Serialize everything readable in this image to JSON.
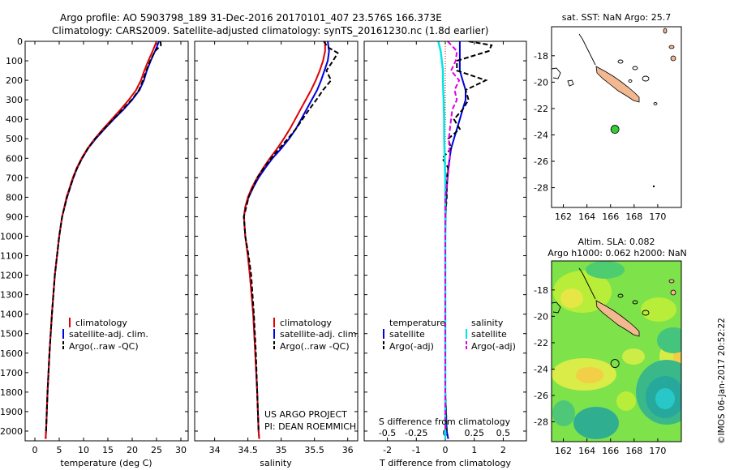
{
  "header": {
    "line1": "Argo profile: AO 5903798_189 31-Dec-2016 20170101_407 23.576S 166.373E",
    "line2": "Climatology: CARS2009. Satellite-adjusted climatology: synTS_20161230.nc (1.8d earlier)"
  },
  "colors": {
    "climatology": "#e00000",
    "satellite": "#0000e0",
    "argo": "#000000",
    "sat_salinity": "#00e5e5",
    "argo_salinity": "#e000e0",
    "marker": "#33cc33"
  },
  "depth_axis": {
    "min": 0,
    "max": 2050,
    "ticks": [
      "0",
      "100",
      "200",
      "300",
      "400",
      "500",
      "600",
      "700",
      "800",
      "900",
      "1000",
      "1100",
      "1200",
      "1300",
      "1400",
      "1500",
      "1600",
      "1700",
      "1800",
      "1900",
      "2000"
    ]
  },
  "chart_data": [
    {
      "type": "line",
      "id": "temperature",
      "xlabel": "temperature (deg C)",
      "xlim": [
        -2,
        31.5
      ],
      "xticks": [
        "0",
        "5",
        "10",
        "15",
        "20",
        "25",
        "30"
      ],
      "legend": [
        "climatology",
        "satellite-adj. clim.",
        "Argo(..raw -QC)"
      ],
      "series": [
        {
          "name": "climatology",
          "y": [
            0,
            50,
            100,
            150,
            200,
            250,
            300,
            350,
            400,
            450,
            500,
            550,
            600,
            650,
            700,
            800,
            900,
            1000,
            1200,
            1400,
            1600,
            1800,
            2000,
            2040
          ],
          "x": [
            25.0,
            24.2,
            23.3,
            22.5,
            21.8,
            20.8,
            19.3,
            17.6,
            15.8,
            14.0,
            12.3,
            10.8,
            9.6,
            8.6,
            7.8,
            6.5,
            5.6,
            5.0,
            4.1,
            3.5,
            3.0,
            2.6,
            2.3,
            2.2
          ]
        },
        {
          "name": "satellite-adj. clim.",
          "y": [
            0,
            50,
            100,
            150,
            200,
            250,
            300,
            350,
            400,
            450,
            500,
            550,
            600,
            650,
            700,
            800,
            900,
            1000,
            1200,
            1400,
            1600,
            1800,
            2000,
            2040
          ],
          "x": [
            25.5,
            24.7,
            23.8,
            23.0,
            22.4,
            21.5,
            20.0,
            18.2,
            16.2,
            14.3,
            12.5,
            10.9,
            9.7,
            8.7,
            7.9,
            6.6,
            5.6,
            5.0,
            4.1,
            3.5,
            3.0,
            2.6,
            2.3,
            2.2
          ]
        },
        {
          "name": "Argo(..raw -QC)",
          "y": [
            0,
            20,
            50,
            100,
            150,
            200,
            250,
            300,
            350,
            400,
            450,
            500,
            550,
            600,
            650,
            700,
            800,
            900,
            1000,
            1200,
            1400,
            1600,
            1800,
            2000
          ],
          "x": [
            25.8,
            25.9,
            24.7,
            23.7,
            22.9,
            22.2,
            21.4,
            19.9,
            18.0,
            16.1,
            14.2,
            12.4,
            10.9,
            9.7,
            8.7,
            7.9,
            6.6,
            5.6,
            5.0,
            4.1,
            3.5,
            3.0,
            2.6,
            2.3
          ]
        }
      ]
    },
    {
      "type": "line",
      "id": "salinity",
      "xlabel": "salinity",
      "xlim": [
        33.7,
        36.15
      ],
      "xticks": [
        "34",
        "34.5",
        "35",
        "35.5",
        "36"
      ],
      "legend": [
        "climatology",
        "satellite-adj. clim.",
        "Argo(..raw -QC)"
      ],
      "annotation": [
        "US ARGO PROJECT",
        "PI: DEAN ROEMMICH"
      ],
      "series": [
        {
          "name": "climatology",
          "y": [
            0,
            50,
            100,
            150,
            200,
            250,
            300,
            350,
            400,
            450,
            500,
            550,
            600,
            650,
            700,
            750,
            800,
            850,
            900,
            1000,
            1100,
            1200,
            1400,
            1600,
            1800,
            2000,
            2040
          ],
          "x": [
            35.66,
            35.66,
            35.63,
            35.58,
            35.52,
            35.45,
            35.37,
            35.29,
            35.21,
            35.13,
            35.04,
            34.94,
            34.83,
            34.73,
            34.64,
            34.56,
            34.5,
            34.46,
            34.44,
            34.46,
            34.5,
            34.53,
            34.58,
            34.61,
            34.64,
            34.66,
            34.67
          ]
        },
        {
          "name": "satellite-adj. clim.",
          "y": [
            0,
            50,
            100,
            150,
            200,
            250,
            300,
            350,
            400,
            450,
            500,
            550,
            600,
            650,
            700,
            750,
            800,
            850,
            900,
            1000,
            1100,
            1200,
            1400,
            1600,
            1800,
            2000,
            2040
          ],
          "x": [
            35.7,
            35.72,
            35.7,
            35.65,
            35.6,
            35.54,
            35.46,
            35.38,
            35.3,
            35.22,
            35.12,
            35.0,
            34.87,
            34.76,
            34.66,
            34.58,
            34.51,
            34.46,
            34.44,
            34.46,
            34.5,
            34.53,
            34.58,
            34.61,
            34.64,
            34.66,
            34.67
          ]
        },
        {
          "name": "Argo(..raw -QC)",
          "y": [
            0,
            30,
            60,
            100,
            150,
            200,
            250,
            300,
            350,
            400,
            450,
            500,
            550,
            600,
            650,
            700,
            800,
            900,
            1000,
            1100,
            1200,
            1400,
            1600,
            1800,
            2000
          ],
          "x": [
            35.64,
            35.7,
            35.85,
            35.78,
            35.68,
            35.75,
            35.63,
            35.53,
            35.42,
            35.32,
            35.22,
            35.1,
            34.97,
            34.85,
            34.74,
            34.64,
            34.51,
            34.44,
            34.46,
            34.51,
            34.55,
            34.59,
            34.62,
            34.64,
            34.66
          ]
        }
      ]
    },
    {
      "type": "line",
      "id": "difference",
      "xlabel": "T difference from climatology",
      "xlabel_top": "S difference from climatology",
      "xlim": [
        -2.8,
        2.8
      ],
      "xticks": [
        "-2",
        "-1",
        "0",
        "1",
        "2"
      ],
      "xticks_top": [
        "-0.5",
        "-0.25",
        "0",
        "0.25",
        "0.5"
      ],
      "legend_temperature": {
        "title": "temperature",
        "items": [
          "satellite",
          "Argo(-adj)"
        ]
      },
      "legend_salinity": {
        "title": "salinity",
        "items": [
          "satellite",
          "Argo(-adj)"
        ]
      },
      "series": [
        {
          "name": "T satellite",
          "y": [
            0,
            50,
            100,
            150,
            200,
            250,
            300,
            350,
            400,
            450,
            500,
            550,
            600,
            650,
            700,
            750,
            800,
            850,
            900,
            1000,
            1200,
            1400,
            1600,
            1800,
            2000,
            2040
          ],
          "x": [
            0.5,
            0.5,
            0.5,
            0.5,
            0.6,
            0.7,
            0.7,
            0.6,
            0.5,
            0.4,
            0.3,
            0.2,
            0.15,
            0.1,
            0.08,
            0.05,
            0.03,
            0.02,
            0.01,
            0.0,
            0.0,
            0.0,
            0.0,
            0.0,
            0.05,
            0.1
          ]
        },
        {
          "name": "T Argo(-adj)",
          "y": [
            0,
            20,
            50,
            100,
            150,
            200,
            250,
            300,
            350,
            400,
            450,
            500,
            550,
            600,
            650,
            700,
            800,
            900,
            1000,
            1200,
            1400,
            1600,
            1800,
            2000
          ],
          "x": [
            0.8,
            1.6,
            1.5,
            0.4,
            0.4,
            1.4,
            0.7,
            0.8,
            0.6,
            0.3,
            0.5,
            0.1,
            0.2,
            -0.1,
            0.1,
            0.05,
            0.05,
            0.0,
            0.0,
            0.0,
            0.0,
            0.0,
            0.0,
            0.05
          ]
        },
        {
          "name": "S satellite",
          "y": [
            0,
            50,
            100,
            150,
            200,
            300,
            400,
            500,
            600,
            700,
            800,
            900,
            1000,
            1200,
            1400,
            1600,
            1800,
            2000,
            2040
          ],
          "x": [
            -0.06,
            -0.04,
            -0.03,
            -0.02,
            -0.02,
            -0.015,
            -0.01,
            -0.01,
            -0.005,
            0.0,
            0.0,
            0.0,
            0.0,
            0.0,
            0.0,
            0.0,
            0.0,
            0.0,
            0.0
          ]
        },
        {
          "name": "S Argo(-adj)",
          "y": [
            0,
            50,
            100,
            150,
            200,
            250,
            300,
            350,
            400,
            500,
            600,
            700,
            800,
            900,
            1000,
            1200,
            1400,
            1600,
            1800,
            2000
          ],
          "x": [
            0.02,
            0.1,
            0.09,
            0.05,
            0.12,
            0.08,
            0.1,
            0.06,
            0.05,
            0.03,
            0.04,
            0.02,
            0.0,
            0.0,
            0.0,
            0.0,
            0.0,
            0.0,
            0.0,
            0.0
          ]
        }
      ]
    },
    {
      "type": "map",
      "id": "sst-map",
      "title": "sat. SST: NaN Argo: 25.7",
      "xlim": [
        161,
        172
      ],
      "ylim": [
        -29.5,
        -15.8
      ],
      "xticks": [
        "162",
        "164",
        "166",
        "168",
        "170"
      ],
      "yticks": [
        "-18",
        "-20",
        "-22",
        "-24",
        "-26",
        "-28"
      ],
      "profile_position": {
        "lon": 166.373,
        "lat": -23.576
      }
    },
    {
      "type": "heatmap",
      "id": "sla-map",
      "title_line1": "Altim. SLA: 0.082",
      "title_line2": "Argo h1000: 0.062 h2000: NaN",
      "xlim": [
        161,
        172
      ],
      "ylim": [
        -29.5,
        -15.8
      ],
      "xticks": [
        "162",
        "164",
        "166",
        "168",
        "170"
      ],
      "yticks": [
        "-18",
        "-20",
        "-22",
        "-24",
        "-26",
        "-28"
      ],
      "profile_position": {
        "lon": 166.373,
        "lat": -23.576
      }
    }
  ],
  "footer": {
    "credit": "©IMOS 06-Jan-2017 20:52:22"
  }
}
